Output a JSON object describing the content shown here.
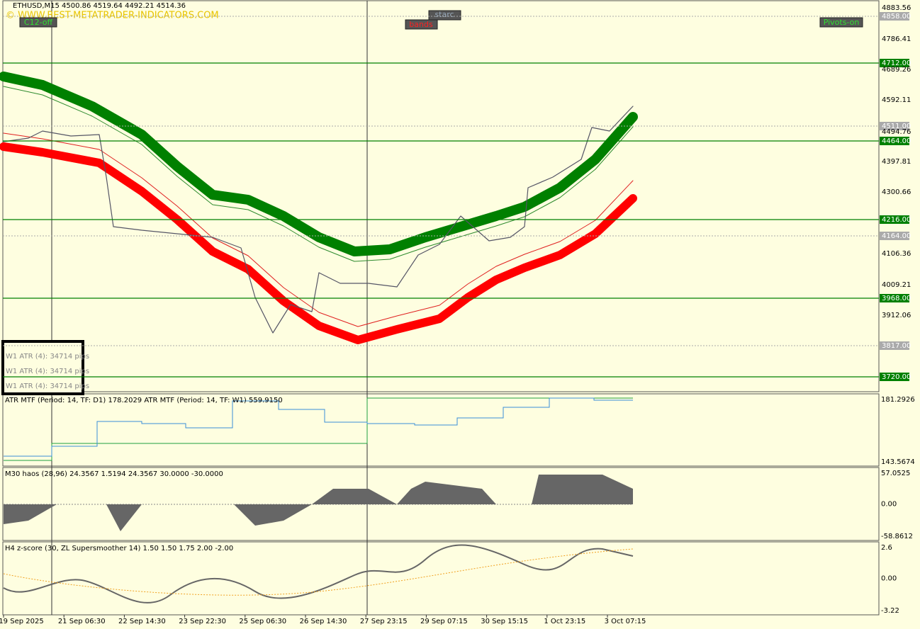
{
  "header": {
    "symbol_line": "ETHUSD,M15  4500.86 4519.64 4492.21 4514.36",
    "watermark": "© WWW.BEST-METATRADER-INDICATORS.COM"
  },
  "buttons": {
    "c12": "C12-off",
    "starc": "starc",
    "bands": "bands",
    "pivots": "Pivots-on"
  },
  "price_axis": [
    "4883.56",
    "4858.00",
    "4786.41",
    "4712.00",
    "4689.26",
    "4592.11",
    "4511.00",
    "4494.76",
    "4464.00",
    "4397.81",
    "4300.66",
    "4216.00",
    "4164.00",
    "4106.36",
    "4009.21",
    "3968.00",
    "3912.06",
    "3817.00",
    "3720.00"
  ],
  "atr_box": [
    "W1 ATR (4): 34714 pips",
    "W1 ATR (4): 34714 pips",
    "W1 ATR (4): 34714 pips"
  ],
  "panels": [
    {
      "label": "ATR MTF (Period: 14, TF: D1) 178.2029  ATR MTF (Period: 14, TF: W1) 559.9150",
      "scale": [
        "181.2926",
        "143.5674"
      ]
    },
    {
      "label": "M30 haos (28,96) 24.3567 1.5194 24.3567 30.0000 -30.0000",
      "scale": [
        "57.0525",
        "0.00",
        "-58.8612"
      ]
    },
    {
      "label": "H4 z-score (30, ZL Supersmoother 14) 1.50 1.50 1.75 2.00 -2.00",
      "scale": [
        "2.6",
        "0.00",
        "-3.22"
      ]
    }
  ],
  "dates": [
    "19 Sep 2025",
    "21 Sep 06:30",
    "22 Sep 14:30",
    "23 Sep 22:30",
    "25 Sep 06:30",
    "26 Sep 14:30",
    "27 Sep 23:15",
    "29 Sep 07:15",
    "30 Sep 15:15",
    "1 Oct 23:15",
    "3 Oct 07:15"
  ]
}
